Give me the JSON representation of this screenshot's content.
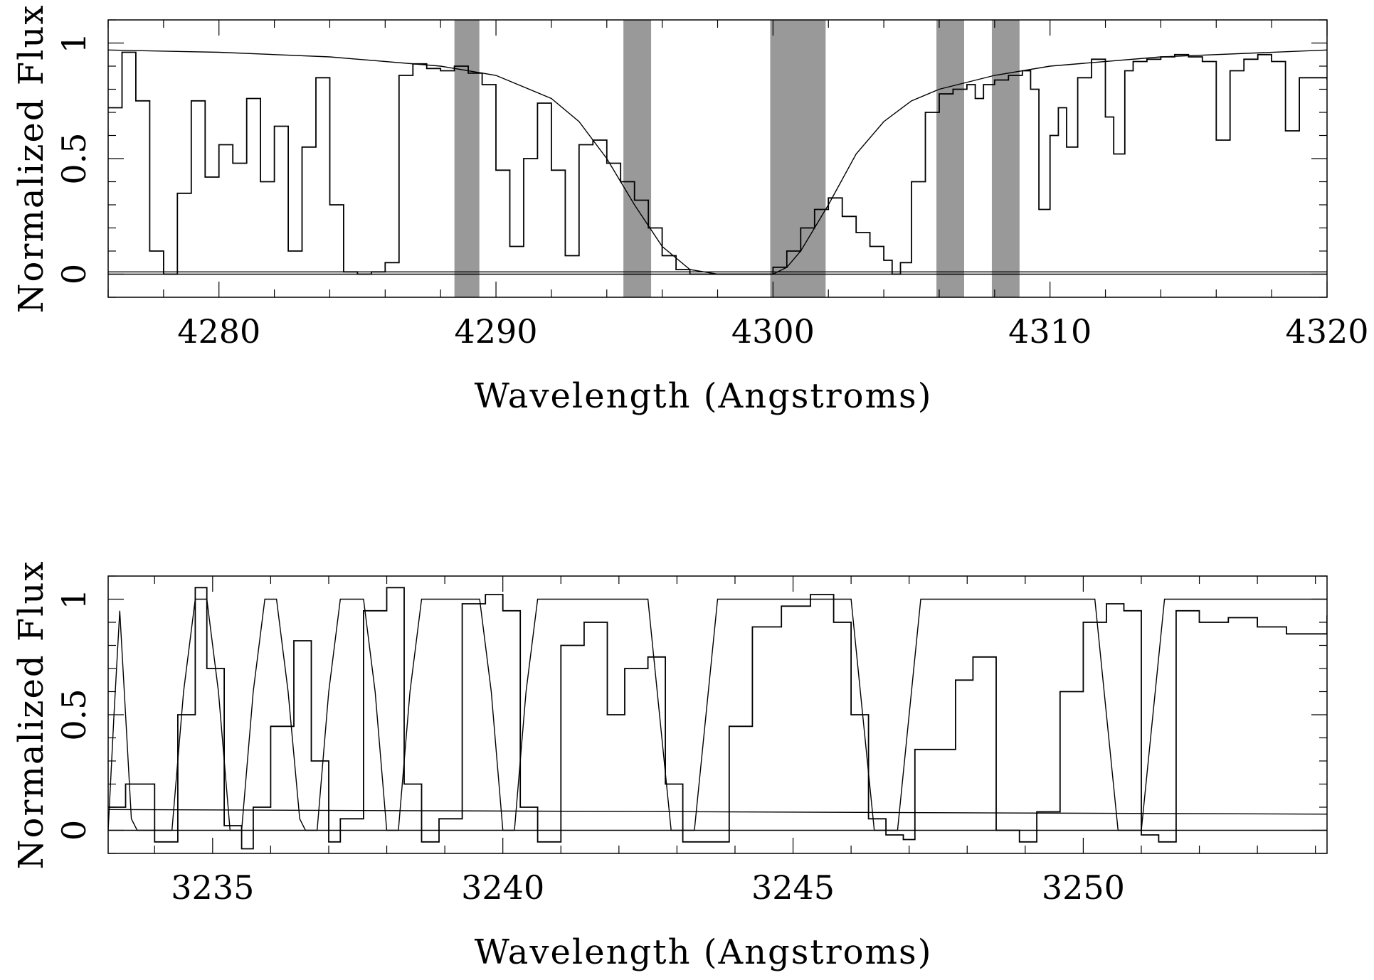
{
  "chart_data": [
    {
      "type": "line",
      "xlabel": "Wavelength (Angstroms)",
      "ylabel": "Normalized Flux",
      "xlim": [
        4276,
        4320
      ],
      "ylim": [
        -0.1,
        1.1
      ],
      "xticks": [
        4280,
        4290,
        4300,
        4310,
        4320
      ],
      "xtick_labels": [
        "4280",
        "4290",
        "4300",
        "4310",
        "4320"
      ],
      "yticks": [
        0,
        0.5,
        1
      ],
      "ytick_labels": [
        "0",
        "0.5",
        "1"
      ],
      "shaded_regions": [
        [
          4288.5,
          4289.4
        ],
        [
          4294.6,
          4295.6
        ],
        [
          4299.9,
          4301.9
        ],
        [
          4305.9,
          4306.9
        ],
        [
          4307.9,
          4308.9
        ]
      ],
      "series": [
        {
          "kind": "observed-spectrum",
          "x": [
            4276.0,
            4276.5,
            4277.0,
            4277.5,
            4278.0,
            4278.5,
            4279.0,
            4279.5,
            4280.0,
            4280.5,
            4281.0,
            4281.5,
            4282.0,
            4282.5,
            4283.0,
            4283.5,
            4284.0,
            4284.5,
            4285.0,
            4285.5,
            4286.0,
            4286.5,
            4287.0,
            4287.5,
            4288.0,
            4288.5,
            4289.0,
            4289.5,
            4290.0,
            4290.5,
            4291.0,
            4291.5,
            4292.0,
            4292.5,
            4293.0,
            4293.5,
            4294.0,
            4294.5,
            4295.0,
            4295.5,
            4296.0,
            4296.5,
            4297.0,
            4298.0,
            4299.0,
            4300.0,
            4300.5,
            4301.0,
            4301.5,
            4302.0,
            4302.5,
            4303.0,
            4303.5,
            4304.0,
            4304.3,
            4304.6,
            4305.0,
            4305.5,
            4306.0,
            4306.5,
            4307.0,
            4307.3,
            4307.6,
            4308.0,
            4308.5,
            4309.0,
            4309.3,
            4309.6,
            4310.0,
            4310.3,
            4310.6,
            4311.0,
            4311.5,
            4312.0,
            4312.3,
            4312.7,
            4313.0,
            4313.5,
            4314.0,
            4314.5,
            4315.0,
            4315.5,
            4316.0,
            4316.5,
            4317.0,
            4317.5,
            4318.0,
            4318.5,
            4319.0,
            4319.5,
            4320.0
          ],
          "y": [
            0.72,
            0.96,
            0.75,
            0.1,
            0.0,
            0.35,
            0.75,
            0.42,
            0.56,
            0.48,
            0.76,
            0.4,
            0.64,
            0.1,
            0.55,
            0.85,
            0.3,
            0.01,
            0.0,
            0.01,
            0.05,
            0.86,
            0.91,
            0.89,
            0.88,
            0.9,
            0.87,
            0.82,
            0.45,
            0.12,
            0.5,
            0.74,
            0.45,
            0.08,
            0.56,
            0.58,
            0.48,
            0.4,
            0.32,
            0.2,
            0.08,
            0.02,
            0.0,
            0.0,
            0.0,
            0.03,
            0.1,
            0.2,
            0.28,
            0.33,
            0.25,
            0.18,
            0.12,
            0.06,
            0.0,
            0.05,
            0.4,
            0.7,
            0.78,
            0.8,
            0.82,
            0.76,
            0.82,
            0.84,
            0.86,
            0.88,
            0.8,
            0.28,
            0.6,
            0.72,
            0.55,
            0.85,
            0.93,
            0.68,
            0.52,
            0.88,
            0.92,
            0.93,
            0.94,
            0.95,
            0.94,
            0.92,
            0.58,
            0.88,
            0.93,
            0.95,
            0.92,
            0.62,
            0.85,
            0.85,
            0.84
          ]
        },
        {
          "kind": "model-fit",
          "x": [
            4276,
            4280,
            4284,
            4288,
            4290,
            4292,
            4293,
            4294,
            4295,
            4296,
            4297,
            4298,
            4299,
            4300,
            4300.5,
            4301,
            4302,
            4303,
            4304,
            4305,
            4306,
            4308,
            4310,
            4314,
            4320
          ],
          "y": [
            0.97,
            0.96,
            0.94,
            0.9,
            0.86,
            0.76,
            0.66,
            0.5,
            0.3,
            0.12,
            0.02,
            0.0,
            0.0,
            0.0,
            0.03,
            0.1,
            0.3,
            0.52,
            0.66,
            0.75,
            0.8,
            0.86,
            0.9,
            0.94,
            0.97
          ]
        },
        {
          "kind": "zero-line",
          "x": [
            4276,
            4320
          ],
          "y": [
            0.0,
            0.0
          ]
        },
        {
          "kind": "error-spectrum",
          "x": [
            4276,
            4320
          ],
          "y": [
            0.01,
            0.01
          ]
        }
      ]
    },
    {
      "type": "line",
      "xlabel": "Wavelength (Angstroms)",
      "ylabel": "Normalized Flux",
      "xlim": [
        3233.2,
        3254.2
      ],
      "ylim": [
        -0.1,
        1.1
      ],
      "xticks": [
        3235,
        3240,
        3245,
        3250
      ],
      "xtick_labels": [
        "3235",
        "3240",
        "3245",
        "3250"
      ],
      "yticks": [
        0,
        0.5,
        1
      ],
      "ytick_labels": [
        "0",
        "0.5",
        "1"
      ],
      "series": [
        {
          "kind": "observed-spectrum",
          "x": [
            3233.2,
            3233.5,
            3234.0,
            3234.4,
            3234.7,
            3234.9,
            3235.2,
            3235.5,
            3235.7,
            3236.0,
            3236.4,
            3236.7,
            3237.0,
            3237.2,
            3237.6,
            3238.0,
            3238.3,
            3238.6,
            3238.9,
            3239.3,
            3239.7,
            3240.0,
            3240.3,
            3240.6,
            3241.0,
            3241.4,
            3241.8,
            3242.1,
            3242.5,
            3242.8,
            3243.1,
            3243.5,
            3243.9,
            3244.3,
            3244.8,
            3245.3,
            3245.7,
            3246.0,
            3246.3,
            3246.6,
            3246.9,
            3247.1,
            3247.5,
            3247.8,
            3248.1,
            3248.5,
            3248.9,
            3249.2,
            3249.6,
            3250.0,
            3250.4,
            3250.7,
            3251.0,
            3251.3,
            3251.6,
            3252.0,
            3252.5,
            3253.0,
            3253.5,
            3254.2
          ],
          "y": [
            0.1,
            0.2,
            -0.05,
            0.5,
            1.05,
            0.7,
            0.02,
            -0.08,
            0.1,
            0.45,
            0.82,
            0.3,
            -0.05,
            0.05,
            0.95,
            1.05,
            0.2,
            -0.05,
            0.05,
            0.98,
            1.02,
            0.95,
            0.1,
            -0.05,
            0.8,
            0.9,
            0.5,
            0.7,
            0.75,
            0.2,
            -0.05,
            -0.05,
            0.45,
            0.88,
            0.97,
            1.02,
            0.9,
            0.5,
            0.05,
            -0.02,
            -0.04,
            0.35,
            0.35,
            0.65,
            0.75,
            0.0,
            -0.05,
            0.08,
            0.6,
            0.9,
            0.98,
            0.95,
            -0.02,
            -0.05,
            0.95,
            0.9,
            0.92,
            0.88,
            0.85,
            0.93
          ]
        },
        {
          "kind": "model-fit",
          "x": [
            3233.2,
            3233.3,
            3233.4,
            3233.5,
            3233.6,
            3233.7,
            3234.3,
            3234.5,
            3234.7,
            3234.9,
            3235.1,
            3235.3,
            3235.5,
            3235.7,
            3235.9,
            3236.1,
            3236.3,
            3236.5,
            3236.6,
            3236.8,
            3237.0,
            3237.2,
            3237.4,
            3237.6,
            3237.8,
            3238.0,
            3238.2,
            3238.4,
            3238.6,
            3238.8,
            3239.0,
            3239.6,
            3239.8,
            3240.0,
            3240.2,
            3240.4,
            3240.6,
            3240.8,
            3241.0,
            3241.2,
            3242.5,
            3242.7,
            3242.9,
            3243.1,
            3243.3,
            3243.5,
            3243.7,
            3243.9,
            3244.1,
            3246.0,
            3246.2,
            3246.4,
            3246.6,
            3246.8,
            3247.0,
            3247.2,
            3250.2,
            3250.4,
            3250.6,
            3250.8,
            3251.0,
            3251.2,
            3251.4,
            3251.6,
            3254.2
          ],
          "y": [
            0.0,
            0.5,
            0.95,
            0.5,
            0.05,
            0.0,
            0.0,
            0.6,
            1.0,
            1.0,
            0.6,
            0.0,
            0.0,
            0.6,
            1.0,
            1.0,
            0.6,
            0.05,
            0.0,
            0.0,
            0.6,
            1.0,
            1.0,
            1.0,
            0.6,
            0.0,
            0.0,
            0.6,
            1.0,
            1.0,
            1.0,
            1.0,
            0.6,
            0.0,
            0.0,
            0.6,
            1.0,
            1.0,
            1.0,
            1.0,
            1.0,
            0.5,
            0.0,
            0.0,
            0.0,
            0.5,
            1.0,
            1.0,
            1.0,
            1.0,
            0.5,
            0.0,
            0.0,
            0.0,
            0.5,
            1.0,
            1.0,
            0.5,
            0.0,
            0.0,
            0.0,
            0.5,
            1.0,
            1.0,
            1.0
          ]
        },
        {
          "kind": "zero-line",
          "x": [
            3233.2,
            3254.2
          ],
          "y": [
            0.0,
            0.0
          ]
        },
        {
          "kind": "error-spectrum",
          "x": [
            3233.2,
            3254.2
          ],
          "y": [
            0.09,
            0.07
          ]
        }
      ]
    }
  ]
}
